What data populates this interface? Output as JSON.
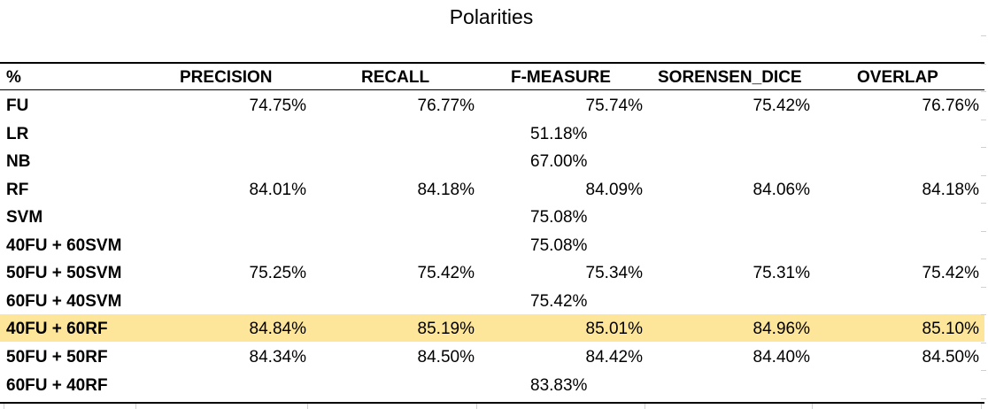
{
  "title": "Polarities",
  "headers": [
    "%",
    "PRECISION",
    "RECALL",
    "F-MEASURE",
    "SORENSEN_DICE",
    "OVERLAP"
  ],
  "rows": [
    {
      "label": "FU",
      "precision": "74.75%",
      "recall": "76.77%",
      "f_measure": "75.74%",
      "sorensen_dice": "75.42%",
      "overlap": "76.76%",
      "highlight": false
    },
    {
      "label": "LR",
      "precision": "",
      "recall": "",
      "f_measure": "51.18%",
      "sorensen_dice": "",
      "overlap": "",
      "highlight": false
    },
    {
      "label": "NB",
      "precision": "",
      "recall": "",
      "f_measure": "67.00%",
      "sorensen_dice": "",
      "overlap": "",
      "highlight": false
    },
    {
      "label": "RF",
      "precision": "84.01%",
      "recall": "84.18%",
      "f_measure": "84.09%",
      "sorensen_dice": "84.06%",
      "overlap": "84.18%",
      "highlight": false
    },
    {
      "label": "SVM",
      "precision": "",
      "recall": "",
      "f_measure": "75.08%",
      "sorensen_dice": "",
      "overlap": "",
      "highlight": false
    },
    {
      "label": "40FU + 60SVM",
      "precision": "",
      "recall": "",
      "f_measure": "75.08%",
      "sorensen_dice": "",
      "overlap": "",
      "highlight": false
    },
    {
      "label": "50FU + 50SVM",
      "precision": "75.25%",
      "recall": "75.42%",
      "f_measure": "75.34%",
      "sorensen_dice": "75.31%",
      "overlap": "75.42%",
      "highlight": false
    },
    {
      "label": "60FU + 40SVM",
      "precision": "",
      "recall": "",
      "f_measure": "75.42%",
      "sorensen_dice": "",
      "overlap": "",
      "highlight": false
    },
    {
      "label": "40FU + 60RF",
      "precision": "84.84%",
      "recall": "85.19%",
      "f_measure": "85.01%",
      "sorensen_dice": "84.96%",
      "overlap": "85.10%",
      "highlight": true
    },
    {
      "label": "50FU + 50RF",
      "precision": "84.34%",
      "recall": "84.50%",
      "f_measure": "84.42%",
      "sorensen_dice": "84.40%",
      "overlap": "84.50%",
      "highlight": false
    },
    {
      "label": "60FU + 40RF",
      "precision": "",
      "recall": "",
      "f_measure": "83.83%",
      "sorensen_dice": "",
      "overlap": "",
      "highlight": false
    }
  ],
  "colors": {
    "highlight": "#fde59a",
    "rule": "#000000",
    "grid_tick": "#d0d0d0"
  }
}
